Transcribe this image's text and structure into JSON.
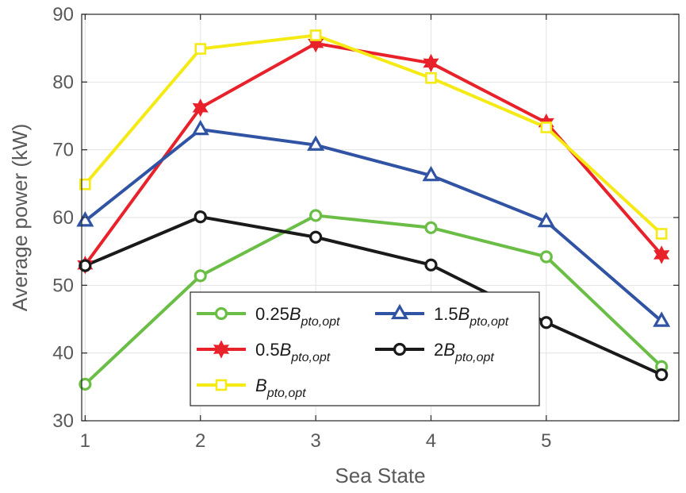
{
  "chart_data": {
    "type": "line",
    "title": "",
    "xlabel": "Sea State",
    "ylabel": "Average power (kW)",
    "x": [
      1,
      2,
      3,
      4,
      5,
      6
    ],
    "xlim": [
      0.97,
      6.15
    ],
    "ylim": [
      30,
      90
    ],
    "xticks": [
      1,
      2,
      3,
      4,
      5
    ],
    "yticks": [
      30,
      40,
      50,
      60,
      70,
      80,
      90
    ],
    "grid": true,
    "legend_position": "bottom-center",
    "series": [
      {
        "name": "0.25B_pto,opt",
        "legend": {
          "prefix": "0.25",
          "main": "B",
          "sub": "pto,opt"
        },
        "color": "#6ABE45",
        "marker": "circle",
        "values": [
          35.4,
          51.4,
          60.3,
          58.5,
          54.2,
          38.0
        ]
      },
      {
        "name": "0.5B_pto,opt",
        "legend": {
          "prefix": "0.5",
          "main": "B",
          "sub": "pto,opt"
        },
        "color": "#E8212A",
        "marker": "hexagram",
        "values": [
          53.0,
          76.2,
          85.7,
          82.8,
          74.0,
          54.5
        ]
      },
      {
        "name": "B_pto,opt",
        "legend": {
          "prefix": "",
          "main": "B",
          "sub": "pto,opt"
        },
        "color": "#F5EA14",
        "marker": "square",
        "values": [
          64.9,
          84.9,
          86.9,
          80.6,
          73.3,
          57.6
        ]
      },
      {
        "name": "1.5B_pto,opt",
        "legend": {
          "prefix": "1.5",
          "main": "B",
          "sub": "pto,opt"
        },
        "color": "#3153A4",
        "marker": "triangle",
        "values": [
          59.5,
          73.0,
          70.7,
          66.2,
          59.4,
          44.7
        ]
      },
      {
        "name": "2B_pto,opt",
        "legend": {
          "prefix": "2",
          "main": "B",
          "sub": "pto,opt"
        },
        "color": "#1A1A1A",
        "marker": "circle",
        "values": [
          52.9,
          60.1,
          57.1,
          53.0,
          44.5,
          36.8
        ]
      }
    ]
  }
}
